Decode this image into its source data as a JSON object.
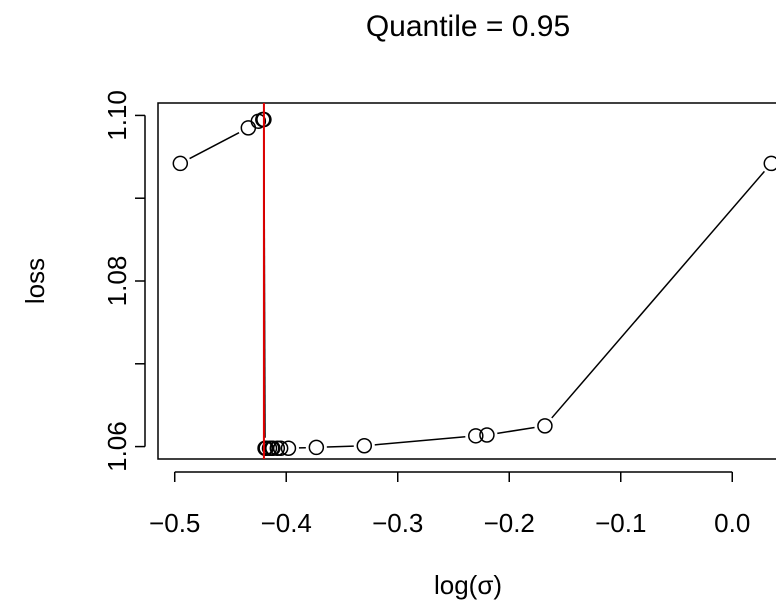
{
  "chart_data": {
    "type": "line",
    "title": "Quantile = 0.95",
    "xlabel": "log(σ)",
    "ylabel": "loss",
    "xlim": [
      -0.515,
      0.05
    ],
    "ylim": [
      1.0585,
      1.1015
    ],
    "x_ticks": [
      -0.5,
      -0.4,
      -0.3,
      -0.2,
      -0.1,
      0.0
    ],
    "x_tick_labels": [
      "−0.5",
      "−0.4",
      "−0.3",
      "−0.2",
      "−0.1",
      "0.0"
    ],
    "y_ticks": [
      1.06,
      1.07,
      1.08,
      1.09,
      1.1
    ],
    "y_tick_labels": [
      "1.06",
      "1.08",
      "1.10"
    ],
    "y_labeled_ticks": [
      1.06,
      1.08,
      1.1
    ],
    "series": [
      {
        "style": "points connected by line segments",
        "x": [
          -0.495,
          -0.434,
          -0.425,
          -0.421,
          -0.42,
          -0.419,
          -0.418,
          -0.415,
          -0.413,
          -0.412,
          -0.408,
          -0.405,
          -0.398,
          -0.373,
          -0.33,
          -0.23,
          -0.22,
          -0.168,
          0.035
        ],
        "y": [
          1.0942,
          1.0985,
          1.0993,
          1.0995,
          1.0995,
          1.0598,
          1.0598,
          1.0598,
          1.0598,
          1.0598,
          1.0598,
          1.0598,
          1.0598,
          1.0599,
          1.0601,
          1.0613,
          1.0614,
          1.0625,
          1.0942
        ]
      }
    ],
    "vlines": [
      {
        "x": -0.42,
        "color": "#e00000"
      }
    ],
    "grid": false,
    "colors": {
      "points": "#000000",
      "line": "#000000",
      "vline": "#e00000"
    }
  }
}
